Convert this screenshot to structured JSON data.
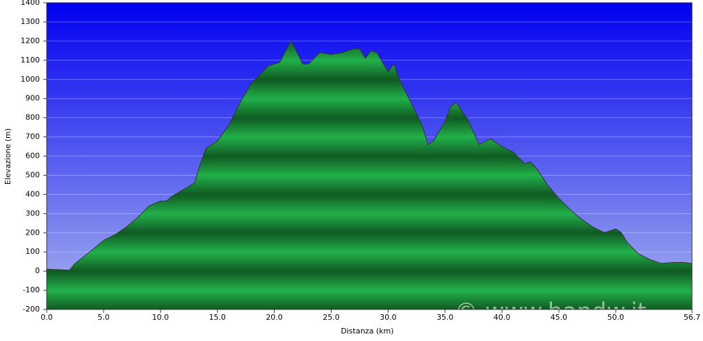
{
  "chart_data": {
    "type": "area",
    "xlabel": "Distanza   (km)",
    "ylabel": "Elevazione (m)",
    "watermark": "© www.bandw.it",
    "x": [
      0,
      2,
      2.5,
      4,
      5,
      6,
      7,
      8,
      9,
      10,
      10.5,
      11,
      12,
      13,
      13.5,
      14,
      15,
      15.5,
      16,
      17,
      18,
      19,
      19.5,
      20.5,
      21,
      21.5,
      22,
      22.5,
      23,
      24,
      25,
      26,
      27,
      27.5,
      28,
      28.5,
      29,
      30,
      30.5,
      31,
      32,
      33,
      33.5,
      34,
      35,
      35.5,
      36,
      37,
      38,
      39,
      40,
      41,
      42,
      42.5,
      43,
      44,
      45,
      46,
      47,
      48,
      49,
      50,
      50.5,
      51,
      52,
      53,
      54,
      55,
      56,
      56.7
    ],
    "values": [
      10,
      5,
      40,
      110,
      160,
      190,
      230,
      280,
      340,
      365,
      365,
      390,
      425,
      460,
      560,
      640,
      680,
      720,
      760,
      880,
      980,
      1040,
      1070,
      1090,
      1150,
      1200,
      1140,
      1080,
      1080,
      1140,
      1130,
      1140,
      1160,
      1160,
      1110,
      1150,
      1140,
      1040,
      1080,
      1000,
      880,
      760,
      660,
      680,
      780,
      860,
      880,
      790,
      660,
      690,
      650,
      620,
      560,
      570,
      540,
      450,
      380,
      320,
      270,
      230,
      200,
      220,
      200,
      150,
      90,
      60,
      40,
      45,
      45,
      40
    ],
    "color": "#22a844",
    "line_color": "#333333",
    "xlim": [
      0,
      56.7
    ],
    "ylim": [
      -200,
      1400
    ],
    "xticks": [
      {
        "value": 0,
        "label": "0.0"
      },
      {
        "value": 5,
        "label": "5.0"
      },
      {
        "value": 10,
        "label": "10.0"
      },
      {
        "value": 15,
        "label": "15.0"
      },
      {
        "value": 20,
        "label": "20.0"
      },
      {
        "value": 25,
        "label": "25.0"
      },
      {
        "value": 30,
        "label": "30.0"
      },
      {
        "value": 35,
        "label": "35.0"
      },
      {
        "value": 40,
        "label": "40.0"
      },
      {
        "value": 45,
        "label": "45.0"
      },
      {
        "value": 50,
        "label": "50.0"
      },
      56.7
    ],
    "yticks": [
      -200,
      -100,
      0,
      100,
      200,
      300,
      400,
      500,
      600,
      700,
      800,
      900,
      1000,
      1100,
      1200,
      1300,
      1400
    ],
    "grid": true
  }
}
